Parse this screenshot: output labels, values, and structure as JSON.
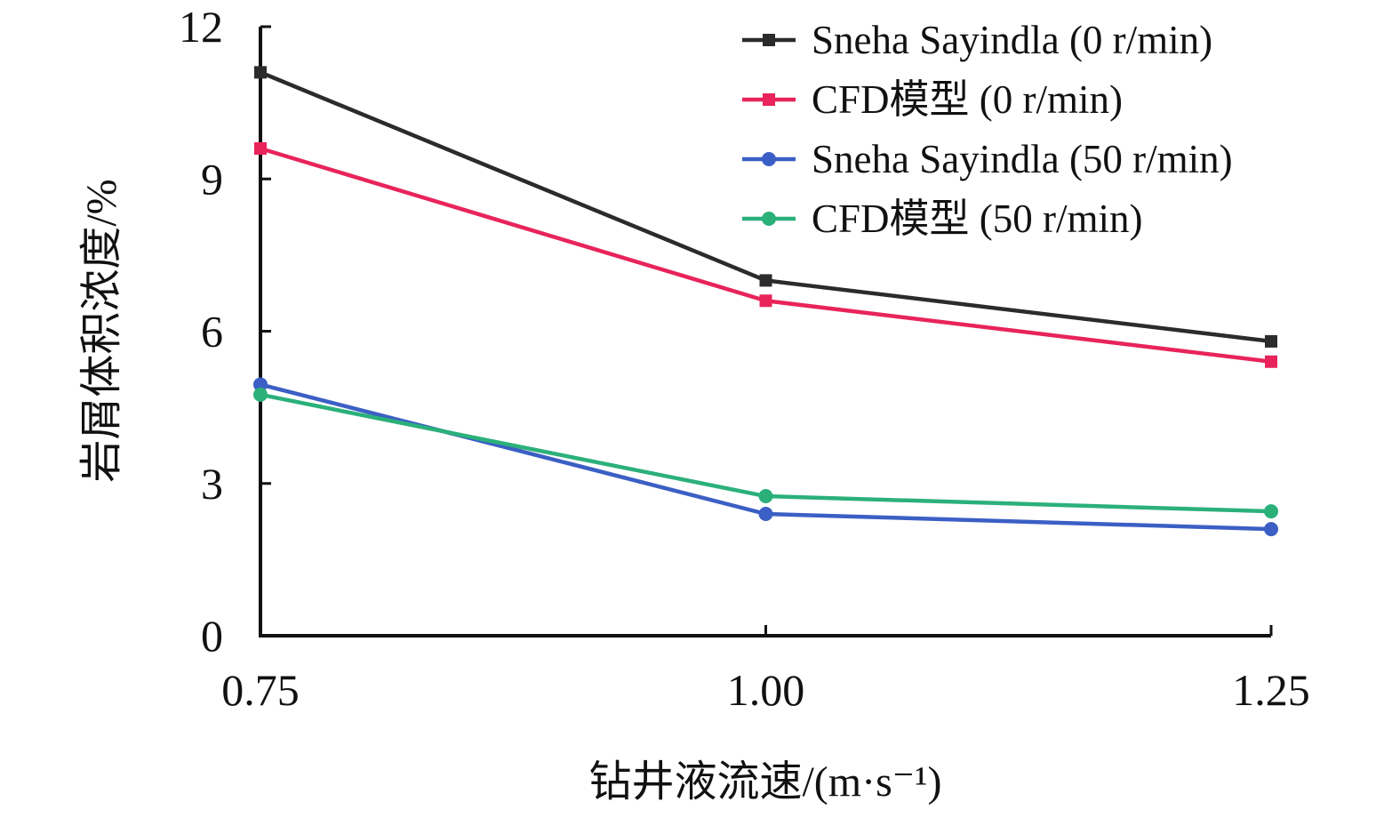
{
  "chart_data": {
    "type": "line",
    "title": "",
    "xlabel": "钻井液流速/(m·s⁻¹)",
    "ylabel": "岩屑体积浓度/%",
    "x": [
      0.75,
      1.0,
      1.25
    ],
    "x_tick_labels": [
      "0.75",
      "1.00",
      "1.25"
    ],
    "y_tick_labels": [
      "0",
      "3",
      "6",
      "9",
      "12"
    ],
    "y_ticks": [
      0,
      3,
      6,
      9,
      12
    ],
    "xlim": [
      0.75,
      1.25
    ],
    "ylim": [
      0,
      12
    ],
    "grid": false,
    "legend_position": "top-right",
    "series": [
      {
        "name": "Sneha Sayindla (0 r/min)",
        "color": "#2b2b2b",
        "marker": "square",
        "values": [
          11.1,
          7.0,
          5.8
        ]
      },
      {
        "name": "CFD模型 (0 r/min)",
        "color": "#e8245a",
        "marker": "square",
        "values": [
          9.6,
          6.6,
          5.4
        ]
      },
      {
        "name": "Sneha Sayindla (50 r/min)",
        "color": "#3b5fc4",
        "marker": "circle",
        "values": [
          4.95,
          2.4,
          2.1
        ]
      },
      {
        "name": "CFD模型 (50 r/min)",
        "color": "#2bb07a",
        "marker": "circle",
        "values": [
          4.75,
          2.75,
          2.45
        ]
      }
    ]
  }
}
